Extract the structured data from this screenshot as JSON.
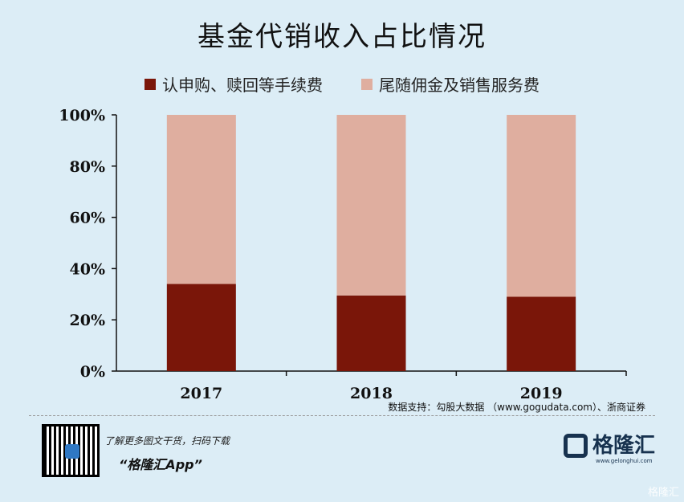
{
  "chart_data": {
    "type": "bar",
    "stacked": true,
    "title": "基金代销收入占比情况",
    "categories": [
      "2017",
      "2018",
      "2019"
    ],
    "series": [
      {
        "name": "认申购、赎回等手续费",
        "values": [
          34,
          29.5,
          29
        ],
        "color": "#7a1609"
      },
      {
        "name": "尾随佣金及销售服务费",
        "values": [
          66,
          70.5,
          71
        ],
        "color": "#dfae9f"
      }
    ],
    "ylim": [
      0,
      100
    ],
    "yticks": [
      "0%",
      "20%",
      "40%",
      "60%",
      "80%",
      "100%"
    ],
    "grid": false,
    "legend_position": "top"
  },
  "source": "数据支持：勾股大数据 （www.gogudata.com）、浙商证券",
  "promo": {
    "text": "了解更多图文干货，扫码下载",
    "app": "“格隆汇App”"
  },
  "brand": {
    "name": "格隆汇",
    "url": "www.gelonghui.com"
  },
  "corner_watermark": "格隆汇"
}
